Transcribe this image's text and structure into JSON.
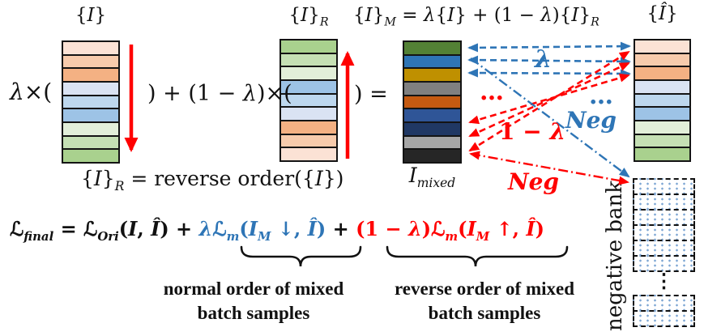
{
  "palette": {
    "blue": "#2e75b6",
    "red": "#ff0000",
    "ink": "#111111"
  },
  "stacks": {
    "batch": {
      "label_html": "{<i>I</i>}",
      "colors": [
        "#fbe2d5",
        "#f7cbac",
        "#f4b183",
        "#dae3f3",
        "#bdd7ee",
        "#9dc3e6",
        "#e2efd9",
        "#c5e0b4",
        "#a9d18e"
      ]
    },
    "batch_reversed": {
      "label_html": "{<i>I</i>}<sub><i>R</i></sub>",
      "colors": [
        "#a9d18e",
        "#c5e0b4",
        "#e2efd9",
        "#9dc3e6",
        "#bdd7ee",
        "#dae3f3",
        "#f4b183",
        "#f7cbac",
        "#fbe2d5"
      ]
    },
    "mixed": {
      "label_html": "<i>I</i><sub><i>mixed</i></sub>",
      "colors": [
        "#538135",
        "#2e75b6",
        "#bf9000",
        "#808080",
        "#c55a11",
        "#2f5597",
        "#203864",
        "#a6a6a6",
        "#262626"
      ]
    },
    "reconstructed": {
      "label_html": "{<i>Î</i>}",
      "colors": [
        "#fbe2d5",
        "#f7cbac",
        "#f4b183",
        "#dae3f3",
        "#bdd7ee",
        "#9dc3e6",
        "#e2efd9",
        "#c5e0b4",
        "#a9d18e"
      ]
    }
  },
  "equations": {
    "mix_left_operator_html": "<i>λ</i>×(",
    "mix_middle_operator_html": ") + (1 − <i>λ</i>)×(",
    "mix_right_operator_html": ") =",
    "mix_definition_html": "{<i>I</i>}<sub><i>M</i></sub> = <i>λ</i>{<i>I</i>} + (1 − <i>λ</i>){<i>I</i>}<sub><i>R</i></sub>",
    "reverse_definition_html": "{<i>I</i>}<sub><i>R</i></sub> = reverse order({<i>I</i>})",
    "loss": {
      "black_part1_html": "ℒ<sub><i>final</i></sub> = ℒ<sub><i>Ori</i></sub>(<i>I</i>, <i>Î</i>) + ",
      "blue_part_html": "<i>λ</i>ℒ<sub><i>m</i></sub>(<i>I<sub>M</sub></i> ↓, <i>Î</i>)",
      "plus": " + ",
      "red_part_html": "(1 − <i>λ</i>)ℒ<sub><i>m</i></sub>(<i>I<sub>M</sub></i> ↑, <i>Î</i>)"
    }
  },
  "arrow_labels": {
    "lambda": "λ",
    "one_minus_lambda_html": "1 − <i>λ</i>",
    "neg_blue": "Neg",
    "neg_red": "Neg",
    "dots_red": "…",
    "dots_blue": "…"
  },
  "negative_bank": {
    "label": "negative bank",
    "top_boxes": 6,
    "bottom_boxes": 2,
    "dots": "⋮"
  },
  "captions": {
    "normal_line1": "normal order of mixed",
    "normal_line2": "batch samples",
    "reverse_line1": "reverse order of mixed",
    "reverse_line2": "batch samples"
  }
}
